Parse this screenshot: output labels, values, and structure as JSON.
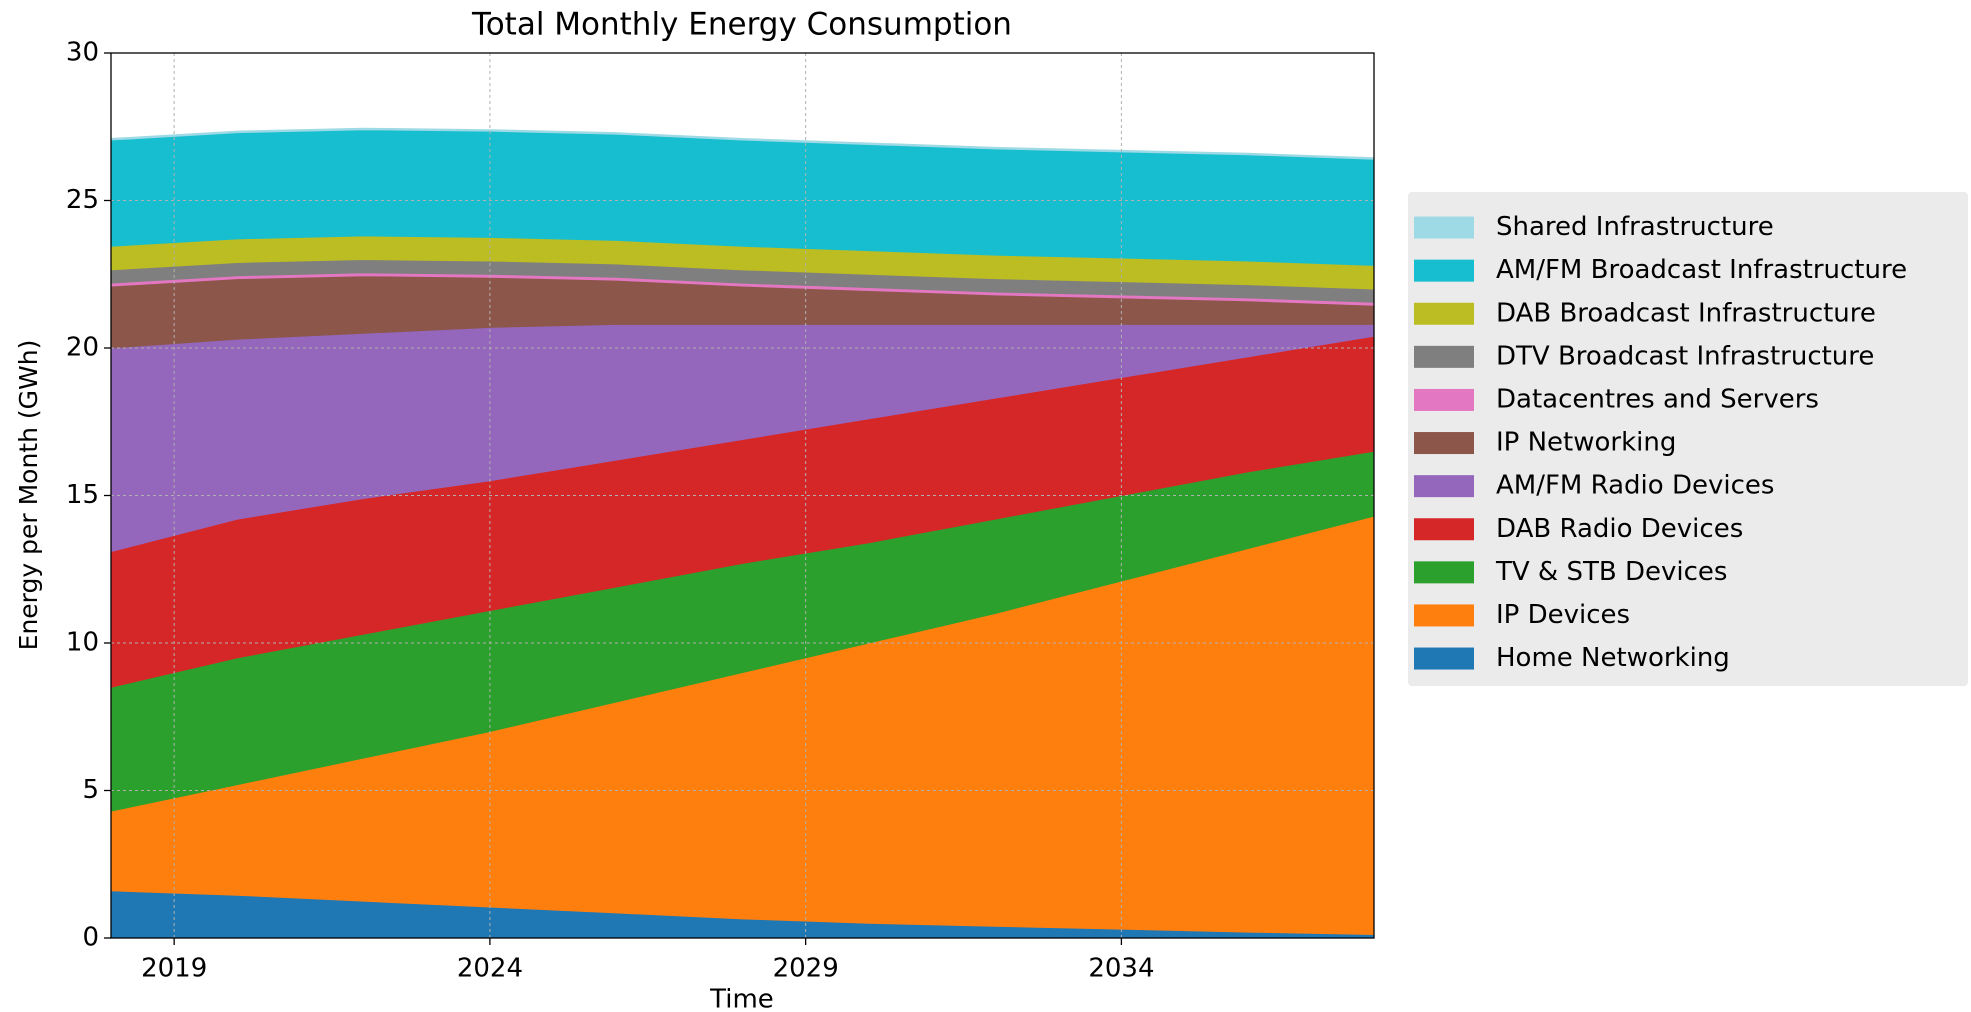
{
  "chart_data": {
    "type": "stacked_area",
    "title": "Total Monthly Energy Consumption",
    "x_label": "Time",
    "y_label": "Energy per Month (GWh)",
    "x": [
      2018,
      2020,
      2022,
      2024,
      2026,
      2028,
      2030,
      2032,
      2034,
      2036,
      2038
    ],
    "series": [
      {
        "name": "Home Networking",
        "color": "#1f77b4",
        "values": [
          1.6,
          1.45,
          1.25,
          1.05,
          0.85,
          0.65,
          0.5,
          0.4,
          0.3,
          0.2,
          0.12
        ]
      },
      {
        "name": "IP Devices",
        "color": "#ff7f0e",
        "values": [
          2.7,
          3.75,
          4.85,
          5.95,
          7.15,
          8.35,
          9.5,
          10.6,
          11.8,
          13.0,
          14.18
        ]
      },
      {
        "name": "TV & STB Devices",
        "color": "#2ca02c",
        "values": [
          4.2,
          4.3,
          4.2,
          4.1,
          3.9,
          3.7,
          3.4,
          3.2,
          2.9,
          2.6,
          2.2
        ]
      },
      {
        "name": "DAB Radio Devices",
        "color": "#d62728",
        "values": [
          4.6,
          4.7,
          4.6,
          4.4,
          4.3,
          4.2,
          4.2,
          4.1,
          4.0,
          3.9,
          3.9
        ]
      },
      {
        "name": "AM/FM Radio Devices",
        "color": "#9467bd",
        "values": [
          6.9,
          6.1,
          5.6,
          5.2,
          4.6,
          3.9,
          3.2,
          2.5,
          1.8,
          1.1,
          0.4
        ]
      },
      {
        "name": "IP Networking",
        "color": "#8c564b",
        "values": [
          2.1,
          2.05,
          1.95,
          1.7,
          1.5,
          1.3,
          1.15,
          1.0,
          0.9,
          0.8,
          0.65
        ]
      },
      {
        "name": "Datacentres and Servers",
        "color": "#e377c2",
        "values": [
          0.1,
          0.1,
          0.1,
          0.1,
          0.1,
          0.1,
          0.1,
          0.1,
          0.1,
          0.1,
          0.1
        ]
      },
      {
        "name": "DTV Broadcast Infrastructure",
        "color": "#7f7f7f",
        "values": [
          0.45,
          0.45,
          0.45,
          0.45,
          0.45,
          0.45,
          0.45,
          0.45,
          0.45,
          0.45,
          0.45
        ]
      },
      {
        "name": "DAB Broadcast Infrastructure",
        "color": "#bcbd22",
        "values": [
          0.8,
          0.8,
          0.8,
          0.8,
          0.8,
          0.8,
          0.8,
          0.8,
          0.8,
          0.8,
          0.8
        ]
      },
      {
        "name": "AM/FM Broadcast Infrastructure",
        "color": "#17becf",
        "values": [
          3.6,
          3.6,
          3.6,
          3.6,
          3.6,
          3.6,
          3.6,
          3.6,
          3.6,
          3.6,
          3.6
        ]
      },
      {
        "name": "Shared Infrastructure",
        "color": "#9edae5",
        "values": [
          0.05,
          0.05,
          0.05,
          0.05,
          0.05,
          0.05,
          0.05,
          0.05,
          0.05,
          0.05,
          0.05
        ]
      }
    ],
    "xlim": [
      2018,
      2038
    ],
    "xticks": [
      2019,
      2024,
      2029,
      2034
    ],
    "ylim": [
      0,
      30
    ],
    "yticks": [
      0,
      5,
      10,
      15,
      20,
      25,
      30
    ],
    "grid": true,
    "legend": "outside right"
  }
}
